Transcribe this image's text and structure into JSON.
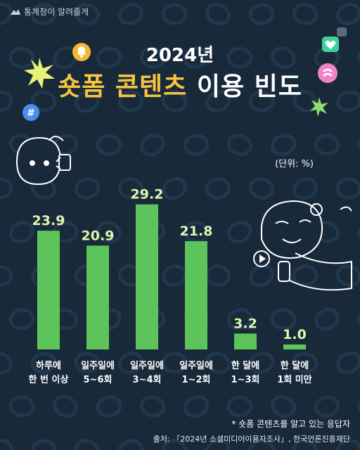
{
  "brand": {
    "logo_text": "통계청이 알려줄게"
  },
  "title": {
    "year": "2024년",
    "highlight": "숏폼 콘텐츠",
    "rest": "이용 빈도"
  },
  "unit_label": "(단위: %)",
  "footnote": "* 숏폼 콘텐츠를 알고 있는 응답자",
  "source": "출처: 「2024년 소셜미디어이용자조사」, 한국언론진흥재단",
  "colors": {
    "background": "#18293a",
    "bar": "#5cc45a",
    "value_text": "#dff5b0",
    "title_highlight": "#f5c542"
  },
  "chart_data": {
    "type": "bar",
    "title": "2024년 숏폼 콘텐츠 이용 빈도",
    "ylabel": "",
    "xlabel": "",
    "unit": "%",
    "ylim": [
      0,
      30
    ],
    "categories": [
      [
        "하루에",
        "한 번 이상"
      ],
      [
        "일주일에",
        "5~6회"
      ],
      [
        "일주일에",
        "3~4회"
      ],
      [
        "일주일에",
        "1~2회"
      ],
      [
        "한 달에",
        "1~3회"
      ],
      [
        "한 달에",
        "1회 미만"
      ]
    ],
    "values": [
      23.9,
      20.9,
      29.2,
      21.8,
      3.2,
      1.0
    ],
    "value_labels": [
      "23.9",
      "20.9",
      "29.2",
      "21.8",
      "3.2",
      "1.0"
    ],
    "grid": false,
    "legend": "none"
  }
}
